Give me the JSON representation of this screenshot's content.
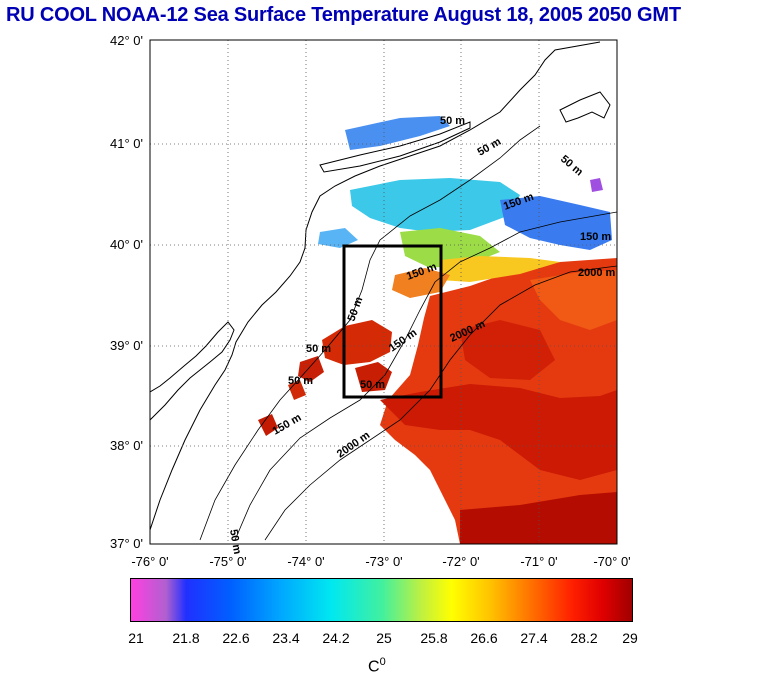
{
  "title": "RU COOL  NOAA-12 Sea Surface Temperature August 18, 2005 2050 GMT",
  "map": {
    "lat_labels": [
      "42° 0'",
      "41° 0'",
      "40° 0'",
      "39° 0'",
      "38° 0'",
      "37° 0'"
    ],
    "lon_labels": [
      "-76° 0'",
      "-75° 0'",
      "-74° 0'",
      "-73° 0'",
      "-72° 0'",
      "-71° 0'",
      "-70° 0'"
    ],
    "contour_labels": [
      "50 m",
      "50 m",
      "50 m",
      "150 m",
      "150 m",
      "150 m",
      "2000 m",
      "2000 m",
      "2000 m",
      "50 m",
      "150 m",
      "50 m",
      "50 m",
      "150 m",
      "50 m",
      "50 m"
    ],
    "colors": {
      "ocean_warm": "#e8300a",
      "ocean_hot": "#c81000",
      "cool": "#00c8ff",
      "frame": "#000000"
    }
  },
  "colorbar": {
    "ticks": [
      "21",
      "21.8",
      "22.6",
      "23.4",
      "24.2",
      "25",
      "25.8",
      "26.6",
      "27.4",
      "28.2",
      "29"
    ],
    "unit": "C",
    "unit_sup": "0"
  }
}
